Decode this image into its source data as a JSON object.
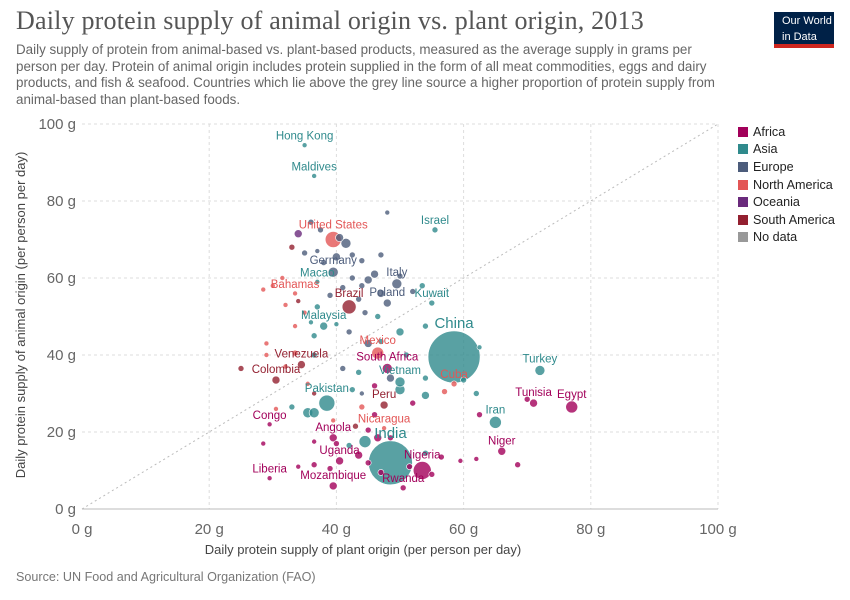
{
  "header": {
    "title": "Daily protein supply of animal origin vs. plant origin, 2013",
    "subtitle": "Daily supply of protein from animal-based vs. plant-based products, measured as the average supply in grams per person per day. Protein of animal origin includes protein supplied in the form of all meat commodities, eggs and dairy products, and fish & seafood. Countries which lie above the grey line source a higher proportion of protein supply from animal-based than plant-based foods.",
    "logo_line1": "Our World",
    "logo_line2": "in Data",
    "logo_bg": "#002147",
    "logo_accent": "#ce261e"
  },
  "footer": {
    "source": "Source: UN Food and Agricultural Organization (FAO)"
  },
  "chart_data": {
    "type": "scatter",
    "xlabel": "Daily protein supply of plant origin (per person per day)",
    "ylabel": "Daily protein supply of animal origin (per person per day)",
    "xlim": [
      0,
      100
    ],
    "ylim": [
      0,
      100
    ],
    "x_ticks": [
      "0 g",
      "20 g",
      "40 g",
      "60 g",
      "80 g",
      "100 g"
    ],
    "y_ticks": [
      "0 g",
      "20 g",
      "40 g",
      "60 g",
      "80 g",
      "100 g"
    ],
    "grid": true,
    "reference_line": "y = x",
    "legend_position": "right",
    "legend": [
      {
        "name": "Africa",
        "color": "#a2005a"
      },
      {
        "name": "Asia",
        "color": "#2f8a8c"
      },
      {
        "name": "Europe",
        "color": "#4c5c7b"
      },
      {
        "name": "North America",
        "color": "#e35656"
      },
      {
        "name": "Oceania",
        "color": "#6a2a7c"
      },
      {
        "name": "South America",
        "color": "#932030"
      },
      {
        "name": "No data",
        "color": "#999999"
      }
    ],
    "labeled_points": [
      {
        "name": "Hong Kong",
        "x": 35,
        "y": 94.5,
        "region": "Asia",
        "size": 2.5
      },
      {
        "name": "Maldives",
        "x": 36.5,
        "y": 86.5,
        "region": "Asia",
        "size": 2.5
      },
      {
        "name": "Israel",
        "x": 55.5,
        "y": 72.5,
        "region": "Asia",
        "size": 3
      },
      {
        "name": "United States",
        "x": 39.5,
        "y": 70,
        "region": "North America",
        "size": 8
      },
      {
        "name": "Germany",
        "x": 39.5,
        "y": 61.5,
        "region": "Europe",
        "size": 5
      },
      {
        "name": "Macao",
        "x": 37,
        "y": 59,
        "region": "Asia",
        "size": 2.5
      },
      {
        "name": "Italy",
        "x": 49.5,
        "y": 58.5,
        "region": "Europe",
        "size": 5
      },
      {
        "name": "Bahamas",
        "x": 33.5,
        "y": 56,
        "region": "North America",
        "size": 2.5
      },
      {
        "name": "Brazil",
        "x": 42,
        "y": 52.5,
        "region": "South America",
        "size": 7
      },
      {
        "name": "Poland",
        "x": 48,
        "y": 53.5,
        "region": "Europe",
        "size": 4
      },
      {
        "name": "Kuwait",
        "x": 55,
        "y": 53.5,
        "region": "Asia",
        "size": 3
      },
      {
        "name": "Malaysia",
        "x": 38,
        "y": 47.5,
        "region": "Asia",
        "size": 4
      },
      {
        "name": "China",
        "x": 58.5,
        "y": 39.5,
        "region": "Asia",
        "size": 26
      },
      {
        "name": "Mexico",
        "x": 46.5,
        "y": 40.5,
        "region": "North America",
        "size": 6
      },
      {
        "name": "Venezuela",
        "x": 34.5,
        "y": 37.5,
        "region": "South America",
        "size": 4
      },
      {
        "name": "South Africa",
        "x": 48,
        "y": 36.5,
        "region": "Africa",
        "size": 5
      },
      {
        "name": "Turkey",
        "x": 72,
        "y": 36,
        "region": "Asia",
        "size": 5
      },
      {
        "name": "Colombia",
        "x": 30.5,
        "y": 33.5,
        "region": "South America",
        "size": 4
      },
      {
        "name": "Vietnam",
        "x": 50,
        "y": 33,
        "region": "Asia",
        "size": 5
      },
      {
        "name": "Cuba",
        "x": 58.5,
        "y": 32.5,
        "region": "North America",
        "size": 3
      },
      {
        "name": "Pakistan",
        "x": 38.5,
        "y": 27.5,
        "region": "Asia",
        "size": 8
      },
      {
        "name": "Tunisia",
        "x": 71,
        "y": 27.5,
        "region": "Africa",
        "size": 4
      },
      {
        "name": "Egypt",
        "x": 77,
        "y": 26.5,
        "region": "Africa",
        "size": 6
      },
      {
        "name": "Peru",
        "x": 47.5,
        "y": 27,
        "region": "South America",
        "size": 4
      },
      {
        "name": "Congo",
        "x": 29.5,
        "y": 22,
        "region": "Africa",
        "size": 2.5
      },
      {
        "name": "Nicaragua",
        "x": 47.5,
        "y": 21,
        "region": "North America",
        "size": 2.5
      },
      {
        "name": "Iran",
        "x": 65,
        "y": 22.5,
        "region": "Asia",
        "size": 6
      },
      {
        "name": "Angola",
        "x": 39.5,
        "y": 18.5,
        "region": "Africa",
        "size": 4
      },
      {
        "name": "India",
        "x": 48.5,
        "y": 12,
        "region": "Asia",
        "size": 22
      },
      {
        "name": "Niger",
        "x": 66,
        "y": 15,
        "region": "Africa",
        "size": 4
      },
      {
        "name": "Uganda",
        "x": 40.5,
        "y": 12.5,
        "region": "Africa",
        "size": 4
      },
      {
        "name": "Nigeria",
        "x": 53.5,
        "y": 10,
        "region": "Africa",
        "size": 9
      },
      {
        "name": "Liberia",
        "x": 29.5,
        "y": 8,
        "region": "Africa",
        "size": 2.5
      },
      {
        "name": "Mozambique",
        "x": 39.5,
        "y": 6,
        "region": "Africa",
        "size": 4
      },
      {
        "name": "Rwanda",
        "x": 50.5,
        "y": 5.5,
        "region": "Africa",
        "size": 3
      }
    ],
    "other_points": [
      {
        "x": 36,
        "y": 74.5,
        "region": "Europe",
        "size": 3
      },
      {
        "x": 37.5,
        "y": 72.5,
        "region": "Europe",
        "size": 3
      },
      {
        "x": 34,
        "y": 71.5,
        "region": "Oceania",
        "size": 4
      },
      {
        "x": 40.5,
        "y": 70.5,
        "region": "Europe",
        "size": 4
      },
      {
        "x": 41.5,
        "y": 69,
        "region": "Europe",
        "size": 5
      },
      {
        "x": 48,
        "y": 77,
        "region": "Europe",
        "size": 2.5
      },
      {
        "x": 33,
        "y": 68,
        "region": "South America",
        "size": 3
      },
      {
        "x": 35,
        "y": 66.5,
        "region": "Europe",
        "size": 3
      },
      {
        "x": 37,
        "y": 67,
        "region": "Europe",
        "size": 2.5
      },
      {
        "x": 42.5,
        "y": 66,
        "region": "Europe",
        "size": 3
      },
      {
        "x": 44,
        "y": 64.5,
        "region": "Europe",
        "size": 3
      },
      {
        "x": 47,
        "y": 66,
        "region": "Europe",
        "size": 3
      },
      {
        "x": 38,
        "y": 64,
        "region": "Europe",
        "size": 3
      },
      {
        "x": 40,
        "y": 65.5,
        "region": "Europe",
        "size": 4
      },
      {
        "x": 46,
        "y": 61,
        "region": "Europe",
        "size": 4
      },
      {
        "x": 50,
        "y": 60.5,
        "region": "Europe",
        "size": 3
      },
      {
        "x": 45,
        "y": 59.5,
        "region": "Europe",
        "size": 4
      },
      {
        "x": 44,
        "y": 58,
        "region": "Europe",
        "size": 3
      },
      {
        "x": 42.5,
        "y": 60,
        "region": "Europe",
        "size": 3
      },
      {
        "x": 41,
        "y": 57.5,
        "region": "Europe",
        "size": 3
      },
      {
        "x": 39,
        "y": 55.5,
        "region": "Europe",
        "size": 3
      },
      {
        "x": 52,
        "y": 56.5,
        "region": "Europe",
        "size": 3
      },
      {
        "x": 47,
        "y": 56,
        "region": "Europe",
        "size": 4
      },
      {
        "x": 53.5,
        "y": 58,
        "region": "Asia",
        "size": 3
      },
      {
        "x": 30,
        "y": 58,
        "region": "North America",
        "size": 2.5
      },
      {
        "x": 31.5,
        "y": 60,
        "region": "North America",
        "size": 2.5
      },
      {
        "x": 28.5,
        "y": 57,
        "region": "North America",
        "size": 2.5
      },
      {
        "x": 32,
        "y": 53,
        "region": "North America",
        "size": 2.5
      },
      {
        "x": 34,
        "y": 54,
        "region": "South America",
        "size": 2.5
      },
      {
        "x": 35,
        "y": 51,
        "region": "North America",
        "size": 2.5
      },
      {
        "x": 37,
        "y": 52.5,
        "region": "Asia",
        "size": 3
      },
      {
        "x": 43.5,
        "y": 54.5,
        "region": "Europe",
        "size": 3
      },
      {
        "x": 44.5,
        "y": 51,
        "region": "Europe",
        "size": 3
      },
      {
        "x": 46.5,
        "y": 50,
        "region": "Asia",
        "size": 3
      },
      {
        "x": 36,
        "y": 48.5,
        "region": "Asia",
        "size": 2.5
      },
      {
        "x": 40,
        "y": 48,
        "region": "Asia",
        "size": 2.5
      },
      {
        "x": 42,
        "y": 46,
        "region": "Europe",
        "size": 3
      },
      {
        "x": 50,
        "y": 46,
        "region": "Asia",
        "size": 4
      },
      {
        "x": 54,
        "y": 47.5,
        "region": "Asia",
        "size": 3
      },
      {
        "x": 33.5,
        "y": 47.5,
        "region": "North America",
        "size": 2.5
      },
      {
        "x": 36.5,
        "y": 45,
        "region": "Asia",
        "size": 3
      },
      {
        "x": 45,
        "y": 43,
        "region": "Europe",
        "size": 4
      },
      {
        "x": 47,
        "y": 43.5,
        "region": "Asia",
        "size": 3
      },
      {
        "x": 51,
        "y": 40,
        "region": "Asia",
        "size": 3
      },
      {
        "x": 62.5,
        "y": 42,
        "region": "Asia",
        "size": 2.5
      },
      {
        "x": 33.5,
        "y": 40.5,
        "region": "North America",
        "size": 3
      },
      {
        "x": 36.5,
        "y": 40,
        "region": "Asia",
        "size": 3
      },
      {
        "x": 29,
        "y": 40,
        "region": "North America",
        "size": 2.5
      },
      {
        "x": 25,
        "y": 36.5,
        "region": "South America",
        "size": 3
      },
      {
        "x": 29,
        "y": 43,
        "region": "North America",
        "size": 2.5
      },
      {
        "x": 32,
        "y": 37,
        "region": "North America",
        "size": 2.5
      },
      {
        "x": 41,
        "y": 36.5,
        "region": "Europe",
        "size": 3
      },
      {
        "x": 43.5,
        "y": 35.5,
        "region": "Asia",
        "size": 3
      },
      {
        "x": 46,
        "y": 32,
        "region": "Africa",
        "size": 3
      },
      {
        "x": 48.5,
        "y": 34,
        "region": "Europe",
        "size": 4
      },
      {
        "x": 54,
        "y": 34,
        "region": "Asia",
        "size": 3
      },
      {
        "x": 60,
        "y": 33.5,
        "region": "Asia",
        "size": 3
      },
      {
        "x": 35.5,
        "y": 32.5,
        "region": "North America",
        "size": 2.5
      },
      {
        "x": 42.5,
        "y": 31,
        "region": "Asia",
        "size": 3
      },
      {
        "x": 44,
        "y": 30,
        "region": "Europe",
        "size": 2.5
      },
      {
        "x": 50,
        "y": 31,
        "region": "Asia",
        "size": 5
      },
      {
        "x": 54,
        "y": 29.5,
        "region": "Asia",
        "size": 4
      },
      {
        "x": 57,
        "y": 30.5,
        "region": "North America",
        "size": 3
      },
      {
        "x": 62,
        "y": 30,
        "region": "Asia",
        "size": 3
      },
      {
        "x": 36.5,
        "y": 30,
        "region": "South America",
        "size": 2.5
      },
      {
        "x": 30.5,
        "y": 26,
        "region": "North America",
        "size": 2.5
      },
      {
        "x": 33,
        "y": 26.5,
        "region": "Asia",
        "size": 3
      },
      {
        "x": 35.5,
        "y": 25,
        "region": "Asia",
        "size": 5
      },
      {
        "x": 36.5,
        "y": 25,
        "region": "Asia",
        "size": 5
      },
      {
        "x": 44,
        "y": 26.5,
        "region": "North America",
        "size": 3
      },
      {
        "x": 46,
        "y": 24.5,
        "region": "Africa",
        "size": 3
      },
      {
        "x": 52,
        "y": 27.5,
        "region": "Africa",
        "size": 3
      },
      {
        "x": 70,
        "y": 28.5,
        "region": "Africa",
        "size": 3
      },
      {
        "x": 39.5,
        "y": 23,
        "region": "North America",
        "size": 2.5
      },
      {
        "x": 43,
        "y": 21.5,
        "region": "South America",
        "size": 3
      },
      {
        "x": 45,
        "y": 20.5,
        "region": "Africa",
        "size": 3
      },
      {
        "x": 48.5,
        "y": 18.5,
        "region": "Africa",
        "size": 3
      },
      {
        "x": 62.5,
        "y": 24.5,
        "region": "Africa",
        "size": 3
      },
      {
        "x": 28.5,
        "y": 17,
        "region": "Africa",
        "size": 2.5
      },
      {
        "x": 36.5,
        "y": 17.5,
        "region": "Africa",
        "size": 2.5
      },
      {
        "x": 40,
        "y": 17,
        "region": "Africa",
        "size": 3
      },
      {
        "x": 42,
        "y": 16.5,
        "region": "Asia",
        "size": 3
      },
      {
        "x": 44.5,
        "y": 17.5,
        "region": "Asia",
        "size": 6
      },
      {
        "x": 46.5,
        "y": 18.5,
        "region": "Africa",
        "size": 4
      },
      {
        "x": 54,
        "y": 14.5,
        "region": "Asia",
        "size": 3
      },
      {
        "x": 56.5,
        "y": 13.5,
        "region": "Africa",
        "size": 3
      },
      {
        "x": 59.5,
        "y": 12.5,
        "region": "Africa",
        "size": 2.5
      },
      {
        "x": 62,
        "y": 13,
        "region": "Africa",
        "size": 2.5
      },
      {
        "x": 68.5,
        "y": 11.5,
        "region": "Africa",
        "size": 3
      },
      {
        "x": 36.5,
        "y": 11.5,
        "region": "Africa",
        "size": 3
      },
      {
        "x": 39,
        "y": 10.5,
        "region": "Africa",
        "size": 3
      },
      {
        "x": 43.5,
        "y": 14,
        "region": "Africa",
        "size": 4
      },
      {
        "x": 45,
        "y": 12,
        "region": "Africa",
        "size": 3
      },
      {
        "x": 47,
        "y": 9.5,
        "region": "Africa",
        "size": 3
      },
      {
        "x": 51.5,
        "y": 11,
        "region": "Africa",
        "size": 3
      },
      {
        "x": 55,
        "y": 9,
        "region": "Africa",
        "size": 3
      },
      {
        "x": 34,
        "y": 11,
        "region": "Africa",
        "size": 2.5
      }
    ]
  }
}
